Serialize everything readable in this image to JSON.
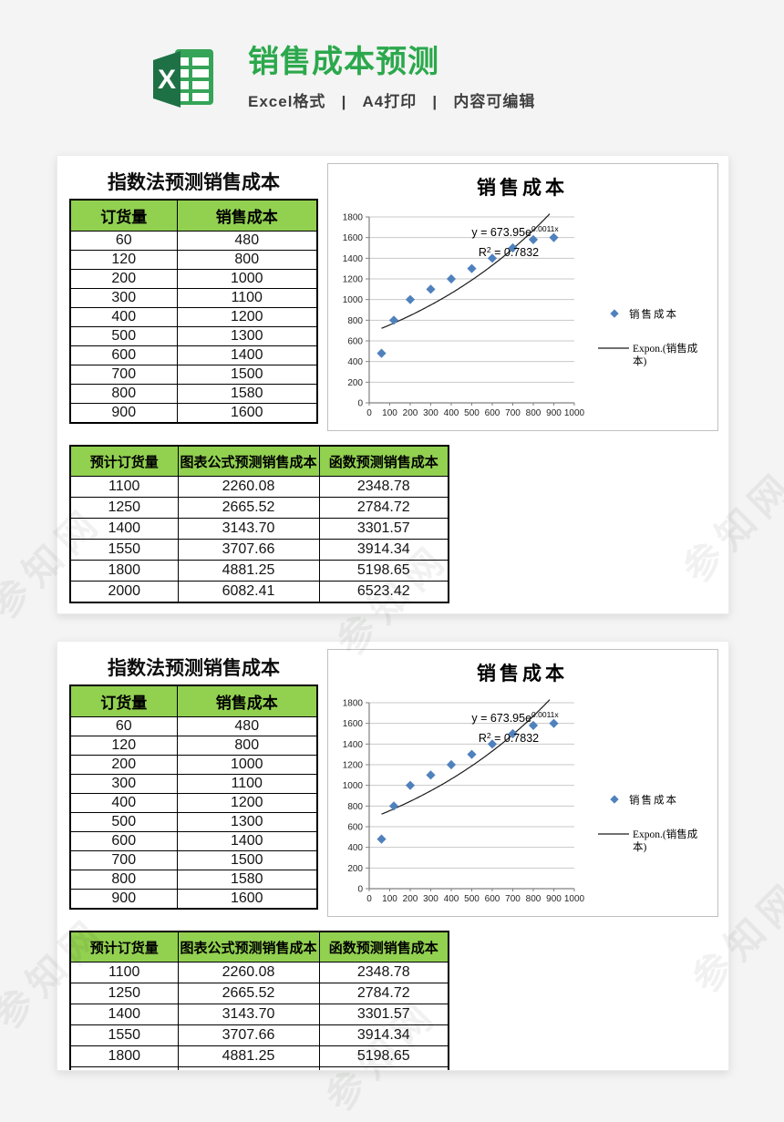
{
  "page": {
    "background": "#f3f4f3",
    "watermark_text": "参知网"
  },
  "header": {
    "logo": "excel-logo",
    "title": "销售成本预测",
    "title_color": "#2ba84c",
    "subtitle": "Excel格式   |   A4打印   |   内容可编辑"
  },
  "panel": {
    "section_title": "指数法预测销售成本",
    "header_bg": "#92d050",
    "table1": {
      "headers": [
        "订货量",
        "销售成本"
      ],
      "rows": [
        [
          "60",
          "480"
        ],
        [
          "120",
          "800"
        ],
        [
          "200",
          "1000"
        ],
        [
          "300",
          "1100"
        ],
        [
          "400",
          "1200"
        ],
        [
          "500",
          "1300"
        ],
        [
          "600",
          "1400"
        ],
        [
          "700",
          "1500"
        ],
        [
          "800",
          "1580"
        ],
        [
          "900",
          "1600"
        ]
      ]
    },
    "table2": {
      "headers": [
        "预计订货量",
        "图表公式预测销售成本",
        "函数预测销售成本"
      ],
      "rows": [
        [
          "1100",
          "2260.08",
          "2348.78"
        ],
        [
          "1250",
          "2665.52",
          "2784.72"
        ],
        [
          "1400",
          "3143.70",
          "3301.57"
        ],
        [
          "1550",
          "3707.66",
          "3914.34"
        ],
        [
          "1800",
          "4881.25",
          "5198.65"
        ],
        [
          "2000",
          "6082.41",
          "6523.42"
        ]
      ]
    }
  },
  "chart_data": {
    "type": "scatter",
    "title": "销售成本",
    "series": [
      {
        "name": "销售成本",
        "x": [
          60,
          120,
          200,
          300,
          400,
          500,
          600,
          700,
          800,
          900
        ],
        "y": [
          480,
          800,
          1000,
          1100,
          1200,
          1300,
          1400,
          1500,
          1580,
          1600
        ]
      }
    ],
    "trendline": {
      "kind": "exponential",
      "a": 673.95,
      "b": 0.001135,
      "x_from": 60,
      "x_to": 900,
      "clip_value": 1830,
      "label": "Expon.(销售成本)",
      "label_lines": [
        "Expon.(销售成",
        "本)"
      ],
      "equation_base": "y = 673.95e",
      "equation_exponent": "0.0011x",
      "r_squared_text": " = 0.7832"
    },
    "axes": {
      "x_ticks": [
        0,
        100,
        200,
        300,
        400,
        500,
        600,
        700,
        800,
        900,
        1000
      ],
      "y_ticks": [
        0,
        200,
        400,
        600,
        800,
        1000,
        1200,
        1400,
        1600,
        1800
      ],
      "x_max": 1000,
      "y_max": 1800,
      "grid": "horizontal"
    },
    "legend_position": "right",
    "colors": {
      "marker": "#4f81bd",
      "trend": "#1a1a1a",
      "grid": "#c8c8c8",
      "axis": "#808080",
      "text": "#262626"
    }
  }
}
